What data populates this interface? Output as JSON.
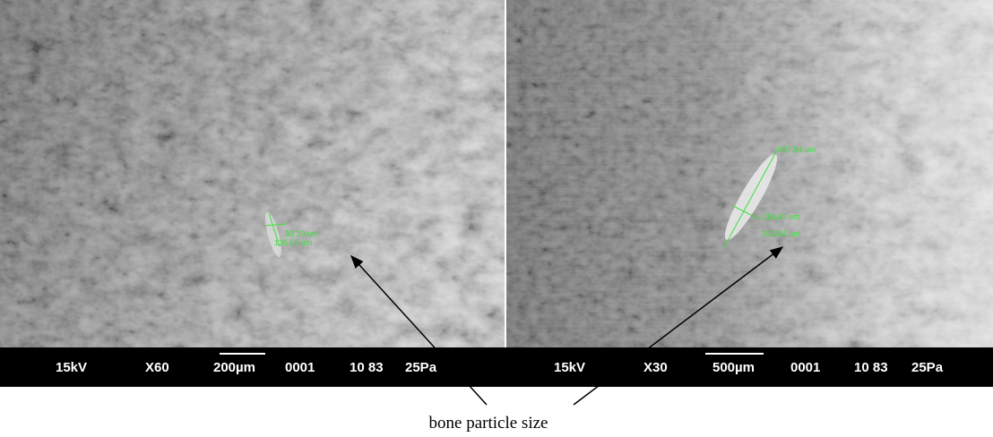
{
  "panels": [
    {
      "measurements": [
        "93.39 um",
        "135.50 um"
      ],
      "info": {
        "voltage": "15kV",
        "magnification": "X60",
        "scale": "200µm",
        "number": "0001",
        "code": "10 83",
        "pressure": "25Pa"
      }
    },
    {
      "measurements": [
        "997.94 um",
        "216.63 um",
        "262.54 um"
      ],
      "info": {
        "voltage": "15kV",
        "magnification": "X30",
        "scale": "500µm",
        "number": "0001",
        "code": "10 83",
        "pressure": "25Pa"
      }
    }
  ],
  "caption": "bone particle size"
}
